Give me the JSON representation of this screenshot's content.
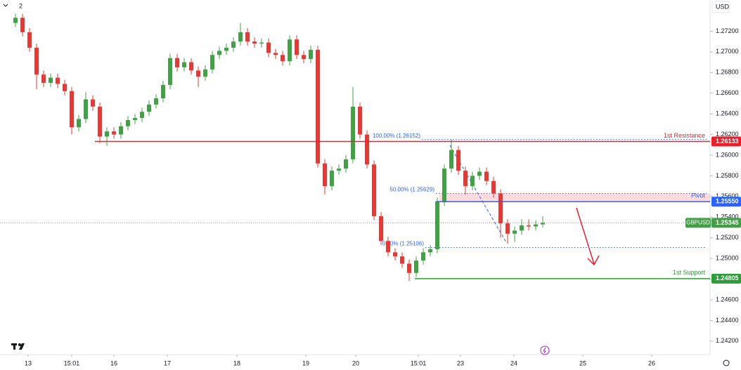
{
  "chart_data": {
    "type": "candlestick",
    "symbol": "GBPUSD",
    "currency": "USD",
    "legend_count": "2",
    "up_color": "#43a047",
    "down_color": "#e53935",
    "ylim": [
      1.2407,
      1.27502
    ],
    "yticks": [
      {
        "value": 1.242,
        "label": "1.24200"
      },
      {
        "value": 1.244,
        "label": "1.24400"
      },
      {
        "value": 1.246,
        "label": "1.24600"
      },
      {
        "value": 1.248,
        "label": "1.24800"
      },
      {
        "value": 1.25,
        "label": "1.25000"
      },
      {
        "value": 1.252,
        "label": "1.25200"
      },
      {
        "value": 1.254,
        "label": "1.25400"
      },
      {
        "value": 1.256,
        "label": "1.25600"
      },
      {
        "value": 1.258,
        "label": "1.25800"
      },
      {
        "value": 1.26,
        "label": "1.26000"
      },
      {
        "value": 1.262,
        "label": "1.26200"
      },
      {
        "value": 1.264,
        "label": "1.26400"
      },
      {
        "value": 1.266,
        "label": "1.26600"
      },
      {
        "value": 1.268,
        "label": "1.26800"
      },
      {
        "value": 1.27,
        "label": "1.27000"
      },
      {
        "value": 1.272,
        "label": "1.27200"
      }
    ],
    "xlim": [
      -2.2,
      98.8
    ],
    "xticks": [
      {
        "value": 1.8,
        "label": "13"
      },
      {
        "value": 8,
        "label": "15:01"
      },
      {
        "value": 14,
        "label": "16"
      },
      {
        "value": 21.6,
        "label": "17"
      },
      {
        "value": 31.5,
        "label": "18"
      },
      {
        "value": 41.3,
        "label": "19"
      },
      {
        "value": 48.4,
        "label": "20"
      },
      {
        "value": 57.3,
        "label": "15:01"
      },
      {
        "value": 63.3,
        "label": "23"
      },
      {
        "value": 70.9,
        "label": "24"
      },
      {
        "value": 80.7,
        "label": "25"
      },
      {
        "value": 90.5,
        "label": "26"
      }
    ],
    "candles": [
      [
        1.2728,
        1.2737,
        1.2724,
        1.2733
      ],
      [
        1.2733,
        1.2737,
        1.2715,
        1.2719
      ],
      [
        1.2719,
        1.2723,
        1.27,
        1.2704
      ],
      [
        1.2704,
        1.2708,
        1.2664,
        1.2678
      ],
      [
        1.2678,
        1.2682,
        1.2666,
        1.267
      ],
      [
        1.267,
        1.2679,
        1.2666,
        1.2675
      ],
      [
        1.2675,
        1.2679,
        1.2665,
        1.2669
      ],
      [
        1.2669,
        1.2673,
        1.2658,
        1.2662
      ],
      [
        1.2662,
        1.2666,
        1.262,
        1.2627
      ],
      [
        1.2627,
        1.2639,
        1.2623,
        1.2635
      ],
      [
        1.2635,
        1.2661,
        1.2631,
        1.2654
      ],
      [
        1.2654,
        1.2658,
        1.2643,
        1.2647
      ],
      [
        1.2647,
        1.2651,
        1.2612,
        1.2618
      ],
      [
        1.2618,
        1.2627,
        1.2609,
        1.2623
      ],
      [
        1.2623,
        1.2627,
        1.2616,
        1.262
      ],
      [
        1.262,
        1.2632,
        1.2616,
        1.2628
      ],
      [
        1.2628,
        1.2638,
        1.2624,
        1.2634
      ],
      [
        1.2634,
        1.264,
        1.263,
        1.2636
      ],
      [
        1.2636,
        1.2646,
        1.2632,
        1.2642
      ],
      [
        1.2642,
        1.2653,
        1.2638,
        1.2649
      ],
      [
        1.2649,
        1.2659,
        1.2645,
        1.2655
      ],
      [
        1.2655,
        1.2672,
        1.2651,
        1.2668
      ],
      [
        1.2668,
        1.2698,
        1.2664,
        1.2694
      ],
      [
        1.2694,
        1.2698,
        1.2681,
        1.2685
      ],
      [
        1.2685,
        1.2694,
        1.2681,
        1.269
      ],
      [
        1.269,
        1.2694,
        1.2678,
        1.2682
      ],
      [
        1.2682,
        1.2686,
        1.2666,
        1.2676
      ],
      [
        1.2676,
        1.2687,
        1.2672,
        1.2683
      ],
      [
        1.2683,
        1.2701,
        1.2679,
        1.2697
      ],
      [
        1.2697,
        1.2705,
        1.2693,
        1.2701
      ],
      [
        1.2701,
        1.2708,
        1.2697,
        1.2704
      ],
      [
        1.2704,
        1.2714,
        1.27,
        1.271
      ],
      [
        1.271,
        1.2728,
        1.2706,
        1.2719
      ],
      [
        1.2719,
        1.2723,
        1.2706,
        1.271
      ],
      [
        1.271,
        1.2714,
        1.2704,
        1.2708
      ],
      [
        1.2708,
        1.2713,
        1.2704,
        1.2709
      ],
      [
        1.2709,
        1.2713,
        1.2695,
        1.2699
      ],
      [
        1.2699,
        1.2703,
        1.2693,
        1.2697
      ],
      [
        1.2697,
        1.2701,
        1.2687,
        1.2691
      ],
      [
        1.2691,
        1.2716,
        1.2687,
        1.2712
      ],
      [
        1.2712,
        1.2716,
        1.2693,
        1.2697
      ],
      [
        1.2697,
        1.2701,
        1.2689,
        1.2693
      ],
      [
        1.2693,
        1.2706,
        1.2689,
        1.2702
      ],
      [
        1.2702,
        1.2706,
        1.2588,
        1.2592
      ],
      [
        1.2592,
        1.2596,
        1.2562,
        1.257
      ],
      [
        1.257,
        1.2589,
        1.2566,
        1.2585
      ],
      [
        1.2585,
        1.2591,
        1.2581,
        1.2587
      ],
      [
        1.2587,
        1.26,
        1.2583,
        1.2596
      ],
      [
        1.2596,
        1.2666,
        1.2592,
        1.2647
      ],
      [
        1.2647,
        1.2651,
        1.2616,
        1.262
      ],
      [
        1.262,
        1.2624,
        1.2587,
        1.2591
      ],
      [
        1.2591,
        1.2595,
        1.2537,
        1.2541
      ],
      [
        1.2541,
        1.2545,
        1.2513,
        1.2517
      ],
      [
        1.2517,
        1.2521,
        1.2502,
        1.2506
      ],
      [
        1.2506,
        1.251,
        1.2498,
        1.2502
      ],
      [
        1.2502,
        1.2506,
        1.2491,
        1.2495
      ],
      [
        1.2495,
        1.2499,
        1.2478,
        1.2486
      ],
      [
        1.2486,
        1.2502,
        1.2482,
        1.2498
      ],
      [
        1.2498,
        1.251,
        1.2494,
        1.2506
      ],
      [
        1.2506,
        1.2513,
        1.2502,
        1.2509
      ],
      [
        1.2509,
        1.2559,
        1.2505,
        1.2555
      ],
      [
        1.2555,
        1.2591,
        1.2551,
        1.2587
      ],
      [
        1.2587,
        1.2615,
        1.2583,
        1.2605
      ],
      [
        1.2605,
        1.2609,
        1.2581,
        1.2585
      ],
      [
        1.2585,
        1.2589,
        1.2562,
        1.257
      ],
      [
        1.257,
        1.2584,
        1.2566,
        1.258
      ],
      [
        1.258,
        1.2588,
        1.2576,
        1.2584
      ],
      [
        1.2584,
        1.2588,
        1.2571,
        1.2575
      ],
      [
        1.2575,
        1.2579,
        1.2559,
        1.2563
      ],
      [
        1.2563,
        1.2567,
        1.252,
        1.2534
      ],
      [
        1.2534,
        1.2538,
        1.2514,
        1.2524
      ],
      [
        1.2524,
        1.2531,
        1.2516,
        1.2527
      ],
      [
        1.2527,
        1.2538,
        1.2523,
        1.2532
      ],
      [
        1.2532,
        1.2538,
        1.2527,
        1.2531
      ],
      [
        1.2531,
        1.2537,
        1.2527,
        1.2533
      ],
      [
        1.2533,
        1.2541,
        1.253,
        1.25345
      ]
    ],
    "levels": [
      {
        "name": "1st Resistance",
        "value": 1.26133,
        "color": "#e8202c"
      },
      {
        "name": "Pivot",
        "value": 1.2555,
        "value_label": "1.25550",
        "color": "#2962ff"
      },
      {
        "name": "1st Support",
        "value": 1.24805,
        "color": "#2e9c3a"
      }
    ],
    "fib_levels": [
      {
        "value": 1.26152,
        "label": "100.00% (1.26152)"
      },
      {
        "value": 1.25629,
        "label": "50.00% (1.25629)"
      },
      {
        "value": 1.25106,
        "label": "0.00% (1.25106)"
      }
    ]
  }
}
